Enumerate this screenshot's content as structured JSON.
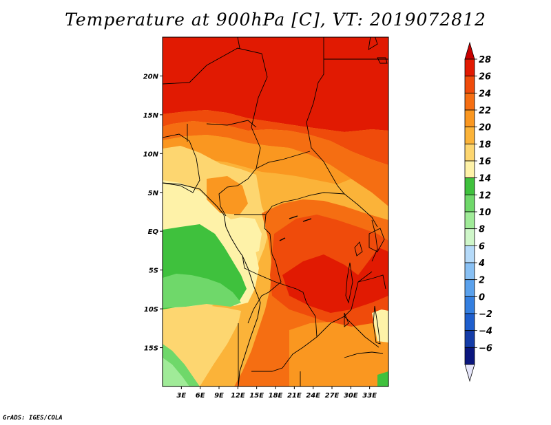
{
  "title": "Temperature at 900hPa [C], VT: 2019072812",
  "credit": "GrADS: IGES/COLA",
  "map": {
    "lon_range": [
      0,
      36
    ],
    "lat_range": [
      -20,
      25
    ],
    "lat_ticks": [
      {
        "value": 20,
        "label": "20N"
      },
      {
        "value": 15,
        "label": "15N"
      },
      {
        "value": 10,
        "label": "10N"
      },
      {
        "value": 5,
        "label": "5N"
      },
      {
        "value": 0,
        "label": "EQ"
      },
      {
        "value": -5,
        "label": "5S"
      },
      {
        "value": -10,
        "label": "10S"
      },
      {
        "value": -15,
        "label": "15S"
      }
    ],
    "lon_ticks": [
      {
        "value": 3,
        "label": "3E"
      },
      {
        "value": 6,
        "label": "6E"
      },
      {
        "value": 9,
        "label": "9E"
      },
      {
        "value": 12,
        "label": "12E"
      },
      {
        "value": 15,
        "label": "15E"
      },
      {
        "value": 18,
        "label": "18E"
      },
      {
        "value": 21,
        "label": "21E"
      },
      {
        "value": 24,
        "label": "24E"
      },
      {
        "value": 27,
        "label": "27E"
      },
      {
        "value": 30,
        "label": "30E"
      },
      {
        "value": 33,
        "label": "33E"
      }
    ]
  },
  "colorbar": {
    "labels": [
      "28",
      "26",
      "24",
      "22",
      "20",
      "18",
      "16",
      "14",
      "12",
      "10",
      "8",
      "6",
      "4",
      "2",
      "0",
      "−2",
      "−4",
      "−6"
    ],
    "colors": [
      "#e11a02",
      "#ef4b0b",
      "#f56e12",
      "#fa9720",
      "#fbb339",
      "#fdd670",
      "#fef2a8",
      "#3fc13d",
      "#6fd86a",
      "#a0eb98",
      "#cff6c9",
      "#b5daf9",
      "#88c0f4",
      "#5aa1ec",
      "#347fe0",
      "#1e5ecd",
      "#143ca8",
      "#0a167e"
    ],
    "over_color": "#c80000",
    "under_color": "#e6e6fa"
  }
}
